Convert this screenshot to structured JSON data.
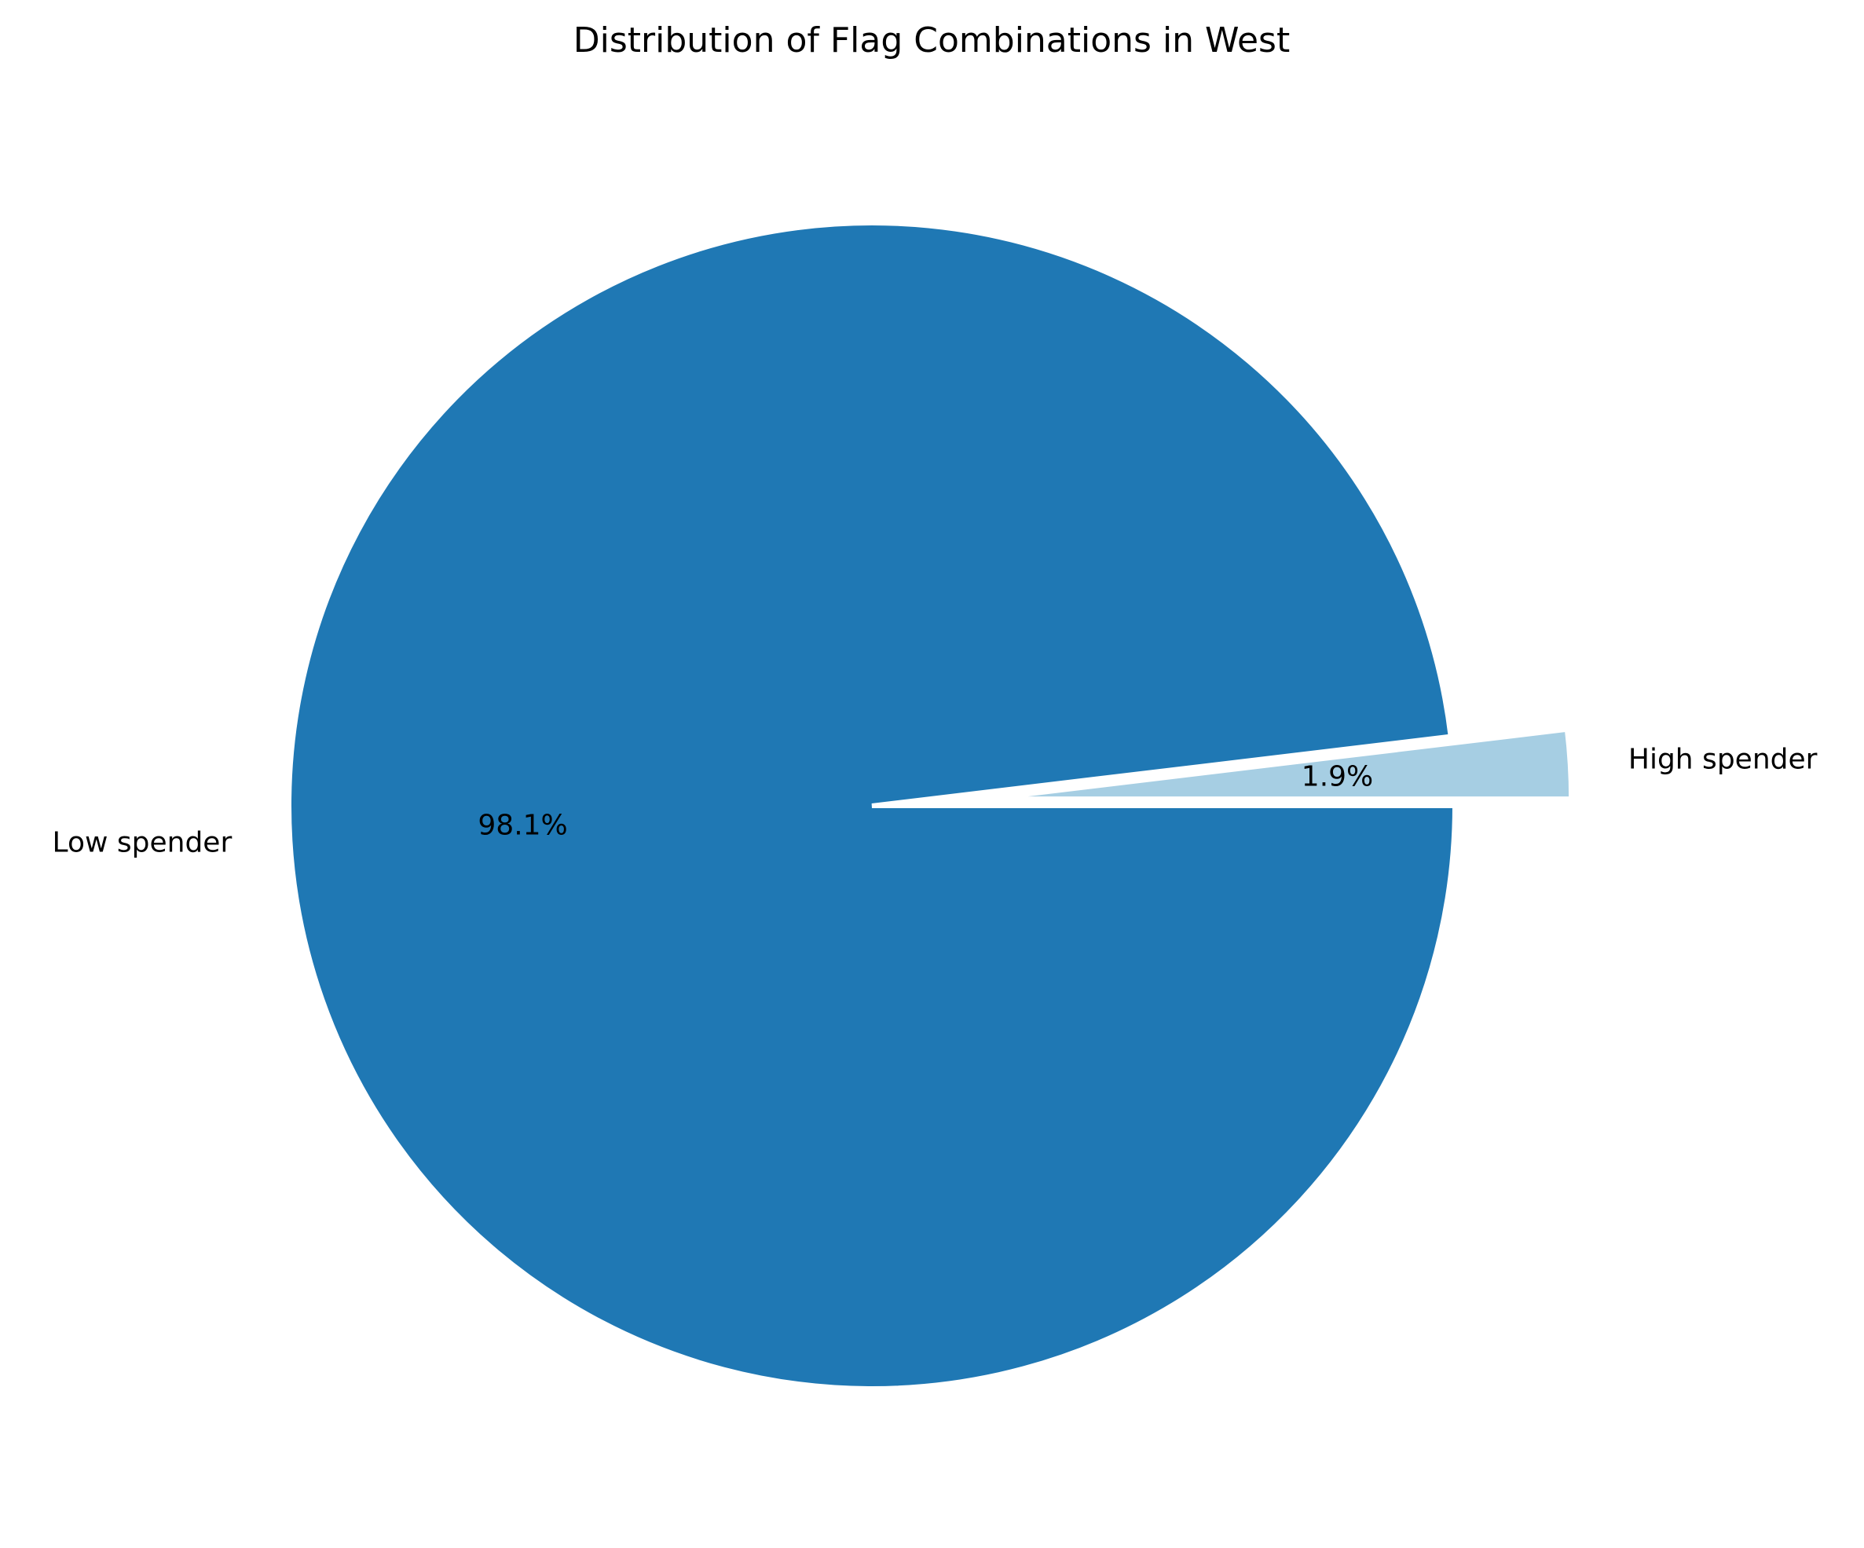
{
  "chart_data": {
    "type": "pie",
    "title": "Distribution of Flag Combinations in West",
    "slices": [
      {
        "label": "High spender",
        "value": 1.9,
        "pct_label": "1.9%",
        "color": "#a6cee3",
        "exploded": true
      },
      {
        "label": "Low spender",
        "value": 98.1,
        "pct_label": "98.1%",
        "color": "#1f78b4",
        "exploded": false
      }
    ],
    "start_angle_deg": 0,
    "direction": "counterclockwise",
    "wedge_edge_color": "#ffffff"
  }
}
